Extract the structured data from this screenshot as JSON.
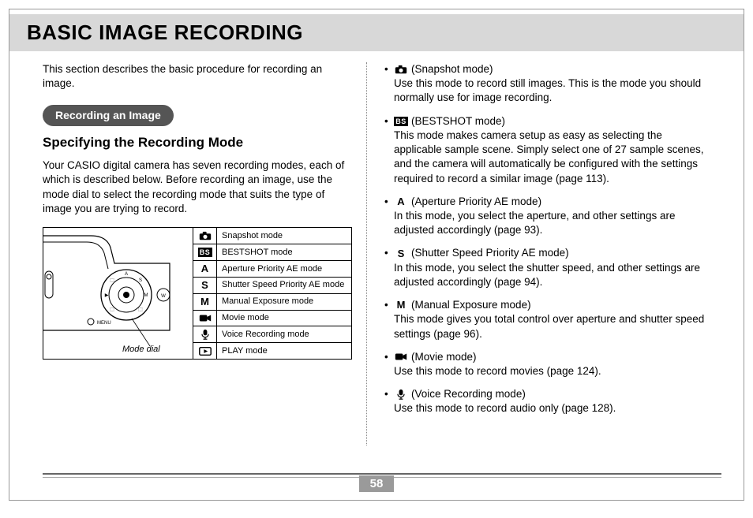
{
  "title": "BASIC IMAGE RECORDING",
  "intro": "This section describes the basic procedure for recording an image.",
  "section_pill": "Recording an Image",
  "subhead": "Specifying the Recording Mode",
  "body": "Your CASIO digital camera has seven recording modes, each of which is described below. Before recording an image, use the mode dial to select the recording mode that suits the type of image you are trying to record.",
  "dial_label": "Mode dial",
  "page_number": "58",
  "table_rows": [
    {
      "icon": "camera",
      "label": "Snapshot mode"
    },
    {
      "icon": "bs",
      "label": "BESTSHOT mode"
    },
    {
      "icon": "A",
      "label": "Aperture Priority AE mode"
    },
    {
      "icon": "S",
      "label": "Shutter Speed Priority AE mode"
    },
    {
      "icon": "M",
      "label": "Manual Exposure mode"
    },
    {
      "icon": "movie",
      "label": "Movie mode"
    },
    {
      "icon": "mic",
      "label": "Voice Recording mode"
    },
    {
      "icon": "play",
      "label": "PLAY mode"
    }
  ],
  "modes": [
    {
      "icon": "camera",
      "name": "(Snapshot mode)",
      "desc": "Use this mode to record still images. This is the mode you should normally use for image recording."
    },
    {
      "icon": "bs",
      "name": "(BESTSHOT mode)",
      "desc": "This mode makes camera setup as easy as selecting the applicable sample scene. Simply select one of 27 sample scenes, and the camera will automatically be configured with the settings required to record a similar image (page 113)."
    },
    {
      "icon": "A",
      "name": "(Aperture Priority AE mode)",
      "desc": "In this mode, you select the aperture, and other settings are adjusted accordingly (page 93)."
    },
    {
      "icon": "S",
      "name": "(Shutter Speed Priority AE mode)",
      "desc": "In this mode, you select the shutter speed, and other settings are adjusted accordingly (page 94)."
    },
    {
      "icon": "M",
      "name": "(Manual Exposure mode)",
      "desc": "This mode gives you total control over aperture and shutter speed settings (page 96)."
    },
    {
      "icon": "movie",
      "name": "(Movie mode)",
      "desc": "Use this mode to record movies (page 124)."
    },
    {
      "icon": "mic",
      "name": "(Voice Recording mode)",
      "desc": "Use this mode to record audio only (page 128)."
    }
  ],
  "colors": {
    "title_bg": "#d8d8d8",
    "pill_bg": "#555555",
    "page_num_bg": "#9a9a9a"
  }
}
